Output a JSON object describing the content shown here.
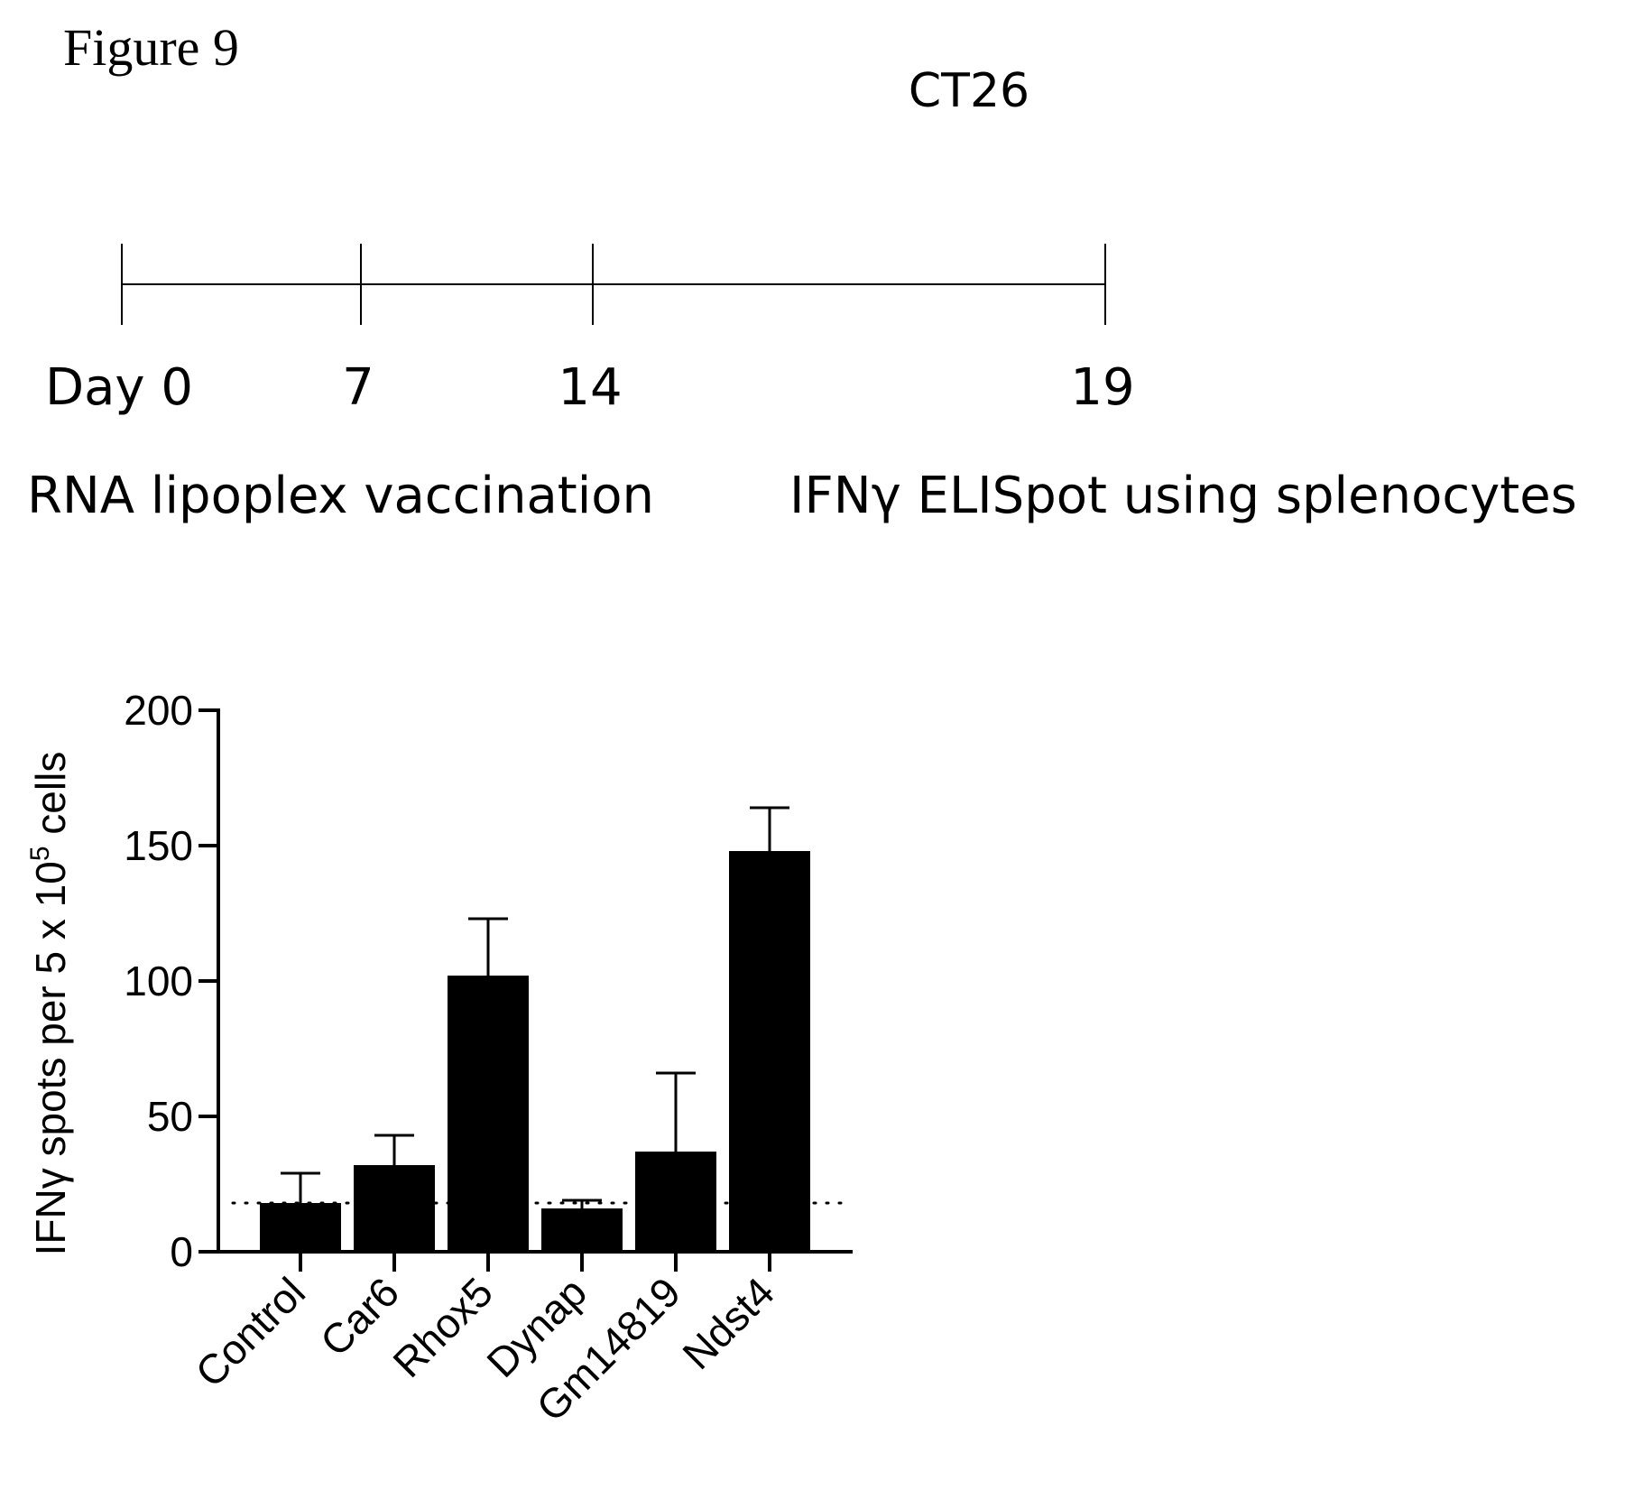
{
  "figure_label": "Figure 9",
  "model_label": "CT26",
  "timeline": {
    "marks": [
      {
        "label": "Day 0",
        "day": 0
      },
      {
        "label": "7",
        "day": 7
      },
      {
        "label": "14",
        "day": 14
      },
      {
        "label": "19",
        "day": 19
      }
    ],
    "vaccination_label": "RNA lipoplex vaccination",
    "readout_label": "IFNγ ELISpot using splenocytes"
  },
  "chart_data": {
    "type": "bar",
    "categories": [
      "Control",
      "Car6",
      "Rhox5",
      "Dynap",
      "Gm14819",
      "Ndst4"
    ],
    "values": [
      18,
      32,
      102,
      16,
      37,
      148
    ],
    "errors": [
      11,
      11,
      21,
      3,
      29,
      16
    ],
    "baseline": 18,
    "ylabel": "IFNγ spots per 5 x 10^5 cells",
    "ylabel_parts": {
      "main": "IFNγ spots per 5 x 10",
      "superscript": "5",
      "suffix": " cells"
    },
    "yticks": [
      0,
      50,
      100,
      150,
      200
    ],
    "ylim": [
      0,
      200
    ],
    "bar_color": "#000000"
  }
}
